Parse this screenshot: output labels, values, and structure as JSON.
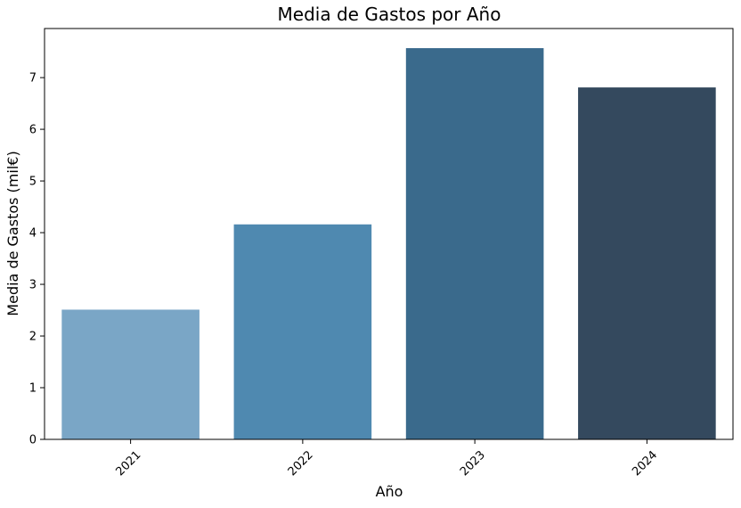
{
  "chart_data": {
    "type": "bar",
    "title": "Media de Gastos por Año",
    "xlabel": "Año",
    "ylabel": "Media de Gastos (mil€)",
    "categories": [
      "2021",
      "2022",
      "2023",
      "2024"
    ],
    "values": [
      2.51,
      4.16,
      7.57,
      6.81
    ],
    "colors": [
      "#7aa6c6",
      "#4f89b0",
      "#3a6a8c",
      "#34495e"
    ],
    "ylim": [
      0,
      7.95
    ],
    "yticks": [
      "0",
      "1",
      "2",
      "3",
      "4",
      "5",
      "6",
      "7"
    ],
    "grid": false,
    "x_tick_rotation_deg": 45
  }
}
